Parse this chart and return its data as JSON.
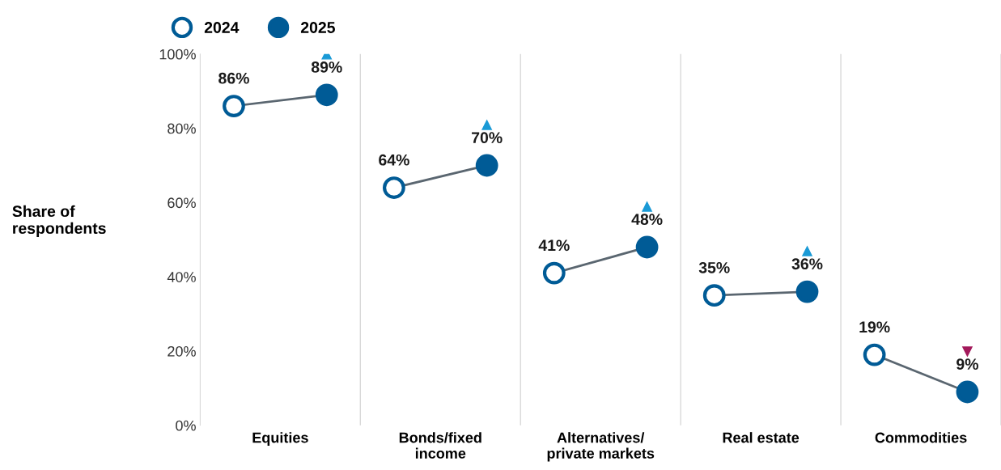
{
  "chart_data": {
    "type": "scatter",
    "ylabel": "Share of\nrespondents",
    "categories": [
      "Equities",
      "Bonds/fixed\nincome",
      "Alternatives/\nprivate markets",
      "Real estate",
      "Commodities"
    ],
    "series": [
      {
        "name": "2024",
        "color": "#005b96",
        "values": [
          86,
          64,
          41,
          35,
          19
        ],
        "value_labels": [
          "86%",
          "64%",
          "41%",
          "35%",
          "19%"
        ],
        "marker": "circle"
      },
      {
        "name": "2025",
        "color": "#005b96",
        "values": [
          89,
          70,
          48,
          36,
          9
        ],
        "value_labels": [
          "89%",
          "70%",
          "48%",
          "36%",
          "9%"
        ],
        "marker": "circle"
      }
    ],
    "ylim": [
      0,
      100
    ],
    "yticks": [
      {
        "value": 0,
        "label": "0%"
      },
      {
        "value": 20,
        "label": "20%"
      },
      {
        "value": 40,
        "label": "40%"
      },
      {
        "value": 60,
        "label": "60%"
      },
      {
        "value": 80,
        "label": "80%"
      },
      {
        "value": 100,
        "label": "100%"
      }
    ],
    "grid": "x",
    "legend": "top left"
  }
}
